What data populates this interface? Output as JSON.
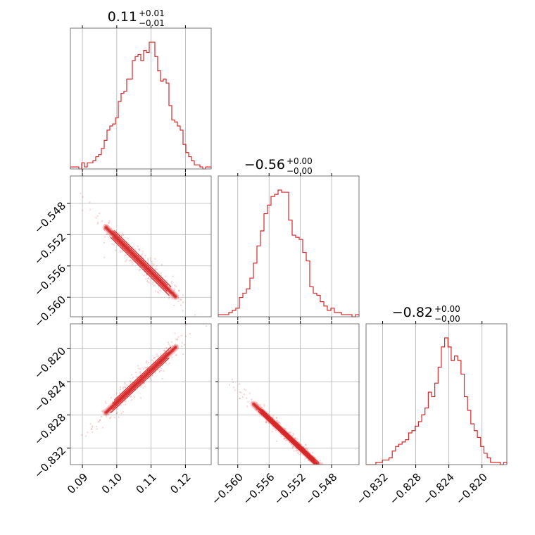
{
  "chart_data": {
    "type": "corner",
    "color": "#d62728",
    "grid": true,
    "parameters": [
      {
        "title": {
          "value": "0.11",
          "upper": "+0.01",
          "lower": "−0.01"
        },
        "range": [
          0.0865,
          0.1275
        ],
        "ticks": [
          0.09,
          0.1,
          0.11,
          0.12
        ],
        "tick_labels": [
          "0.09",
          "0.10",
          "0.11",
          "0.12"
        ],
        "hist_edges_lo": 0.0865,
        "hist_edges_hi": 0.1275,
        "hist_counts": [
          1,
          1,
          1,
          0,
          3,
          1,
          3,
          3,
          4,
          6,
          7,
          10,
          14,
          19,
          21,
          22,
          25,
          33,
          37,
          38,
          44,
          44,
          53,
          55,
          56,
          53,
          58,
          57,
          62,
          62,
          55,
          48,
          43,
          44,
          42,
          31,
          24,
          23,
          21,
          19,
          12,
          8,
          6,
          4,
          2,
          2,
          1,
          0,
          1,
          1
        ]
      },
      {
        "title": {
          "value": "−0.56",
          "upper": "+0.00",
          "lower": "−0.00"
        },
        "range": [
          -0.5625,
          -0.5445
        ],
        "ticks": [
          -0.56,
          -0.556,
          -0.552,
          -0.548
        ],
        "tick_labels": [
          "−0.560",
          "−0.556",
          "−0.552",
          "−0.548"
        ],
        "hist_edges_lo": -0.5625,
        "hist_edges_hi": -0.5445,
        "hist_counts": [
          1,
          1,
          1,
          2,
          3,
          4,
          9,
          11,
          13,
          18,
          25,
          33,
          40,
          48,
          52,
          56,
          57,
          59,
          58,
          58,
          45,
          38,
          37,
          36,
          30,
          26,
          14,
          11,
          10,
          7,
          5,
          3,
          4,
          2,
          2,
          1,
          1,
          1,
          0,
          1
        ]
      },
      {
        "title": {
          "value": "−0.82",
          "upper": "+0.00",
          "lower": "−0.00"
        },
        "range": [
          -0.834,
          -0.817
        ],
        "ticks": [
          -0.832,
          -0.828,
          -0.824,
          -0.82
        ],
        "tick_labels": [
          "−0.832",
          "−0.828",
          "−0.824",
          "−0.820"
        ],
        "hist_edges_lo": -0.834,
        "hist_edges_hi": -0.817,
        "hist_counts": [
          0,
          0,
          0,
          1,
          1,
          2,
          2,
          3,
          6,
          8,
          9,
          10,
          11,
          14,
          15,
          17,
          19,
          22,
          25,
          32,
          30,
          36,
          43,
          52,
          56,
          52,
          46,
          48,
          46,
          40,
          30,
          24,
          18,
          15,
          12,
          8,
          5,
          3,
          1,
          1,
          1,
          0,
          1
        ]
      }
    ],
    "pair_trends": [
      {
        "row": 1,
        "col": 0,
        "slope": -0.4365,
        "intercept": -0.5088,
        "spread": 0.0006
      },
      {
        "row": 2,
        "col": 0,
        "slope": 0.389,
        "intercept": -0.8654,
        "spread": 0.0005
      },
      {
        "row": 2,
        "col": 1,
        "slope": -0.892,
        "intercept": -1.3244,
        "spread": 0.0003
      }
    ]
  }
}
